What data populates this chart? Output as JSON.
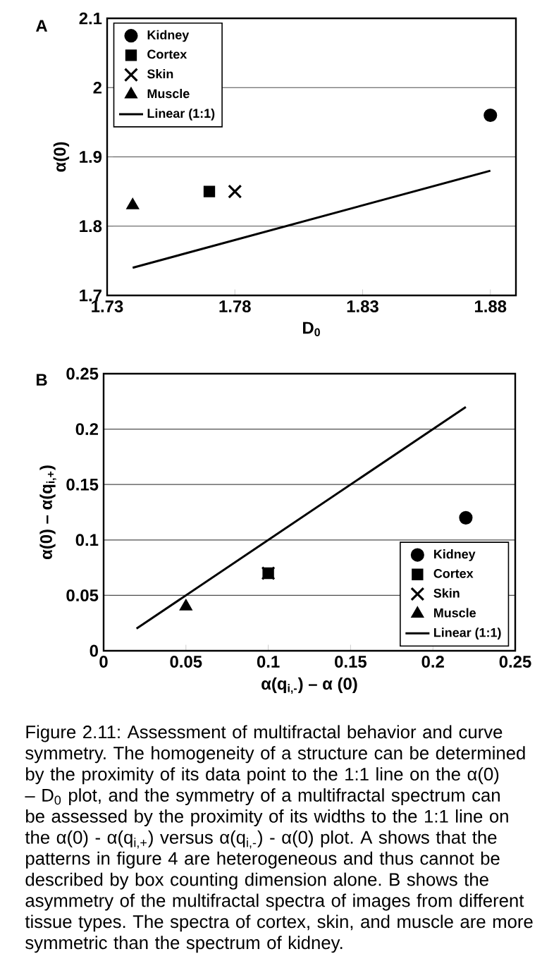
{
  "chart_data": [
    {
      "type": "scatter",
      "annotations": [
        "A"
      ],
      "xlabel": "D$_{0}$",
      "ylabel": "α(0)",
      "xlim": [
        1.73,
        1.89
      ],
      "xticks": [
        1.73,
        1.78,
        1.83,
        1.88
      ],
      "ylim": [
        1.7,
        2.1
      ],
      "yticks": [
        1.7,
        1.8,
        1.9,
        2,
        2.1
      ],
      "grid": "y",
      "legend": "top left",
      "series": [
        {
          "name": "Kidney",
          "color": "#000000",
          "marker": "circle",
          "x": [
            1.88
          ],
          "values": [
            1.96
          ]
        },
        {
          "name": "Cortex",
          "color": "#000000",
          "marker": "square",
          "x": [
            1.77
          ],
          "values": [
            1.85
          ]
        },
        {
          "name": "Skin",
          "color": "#000000",
          "marker": "cross",
          "x": [
            1.78
          ],
          "values": [
            1.85
          ]
        },
        {
          "name": "Muscle",
          "color": "#000000",
          "marker": "triangle",
          "x": [
            1.74
          ],
          "values": [
            1.83
          ]
        },
        {
          "name": "Linear (1:1)",
          "type": "line",
          "color": "#000000",
          "marker": "none",
          "x": [
            1.74,
            1.88
          ],
          "values": [
            1.74,
            1.88
          ]
        }
      ]
    },
    {
      "type": "scatter",
      "annotations": [
        "B",
        "Figure 2.11: Assessment of multifractal behavior and curve symmetry.  The homogeneity of a structure can be determined by the proximity of its data point to the 1:1 line on the α(0) – D$_{0}$ plot, and the symmetry of a multifractal spectrum can be assessed by the proximity of its widths to the 1:1 line on the α(0) - α(q$_{i,+}$) versus α(q$_{i,-}$) - α(0) plot. A shows that the patterns in figure 4 are heterogeneous and thus cannot be described by box counting dimension alone. B shows the asymmetry of the multifractal spectra of images from different tissue types. The spectra of cortex, skin, and muscle are more symmetric than the spectrum of kidney."
      ],
      "xlabel": "α(q$_{i,-}$) – α (0)",
      "ylabel": "α(0) – α(q$_{i,+}$)",
      "xlim": [
        0,
        0.25
      ],
      "xticks": [
        0,
        0.05,
        0.1,
        0.15,
        0.2,
        0.25
      ],
      "ylim": [
        0,
        0.25
      ],
      "yticks": [
        0,
        0.05,
        0.1,
        0.15,
        0.2,
        0.25
      ],
      "grid": "y",
      "legend": "bottom right",
      "series": [
        {
          "name": "Kidney",
          "color": "#000000",
          "marker": "circle",
          "x": [
            0.22
          ],
          "values": [
            0.12
          ]
        },
        {
          "name": "Cortex",
          "color": "#000000",
          "marker": "square",
          "x": [
            0.1
          ],
          "values": [
            0.07
          ]
        },
        {
          "name": "Skin",
          "color": "#000000",
          "marker": "cross",
          "x": [
            0.1
          ],
          "values": [
            0.07
          ]
        },
        {
          "name": "Muscle",
          "color": "#000000",
          "marker": "triangle",
          "x": [
            0.05
          ],
          "values": [
            0.04
          ]
        },
        {
          "name": "Linear (1:1)",
          "type": "line",
          "color": "#000000",
          "marker": "none",
          "x": [
            0.02,
            0.22
          ],
          "values": [
            0.02,
            0.22
          ]
        }
      ]
    }
  ]
}
